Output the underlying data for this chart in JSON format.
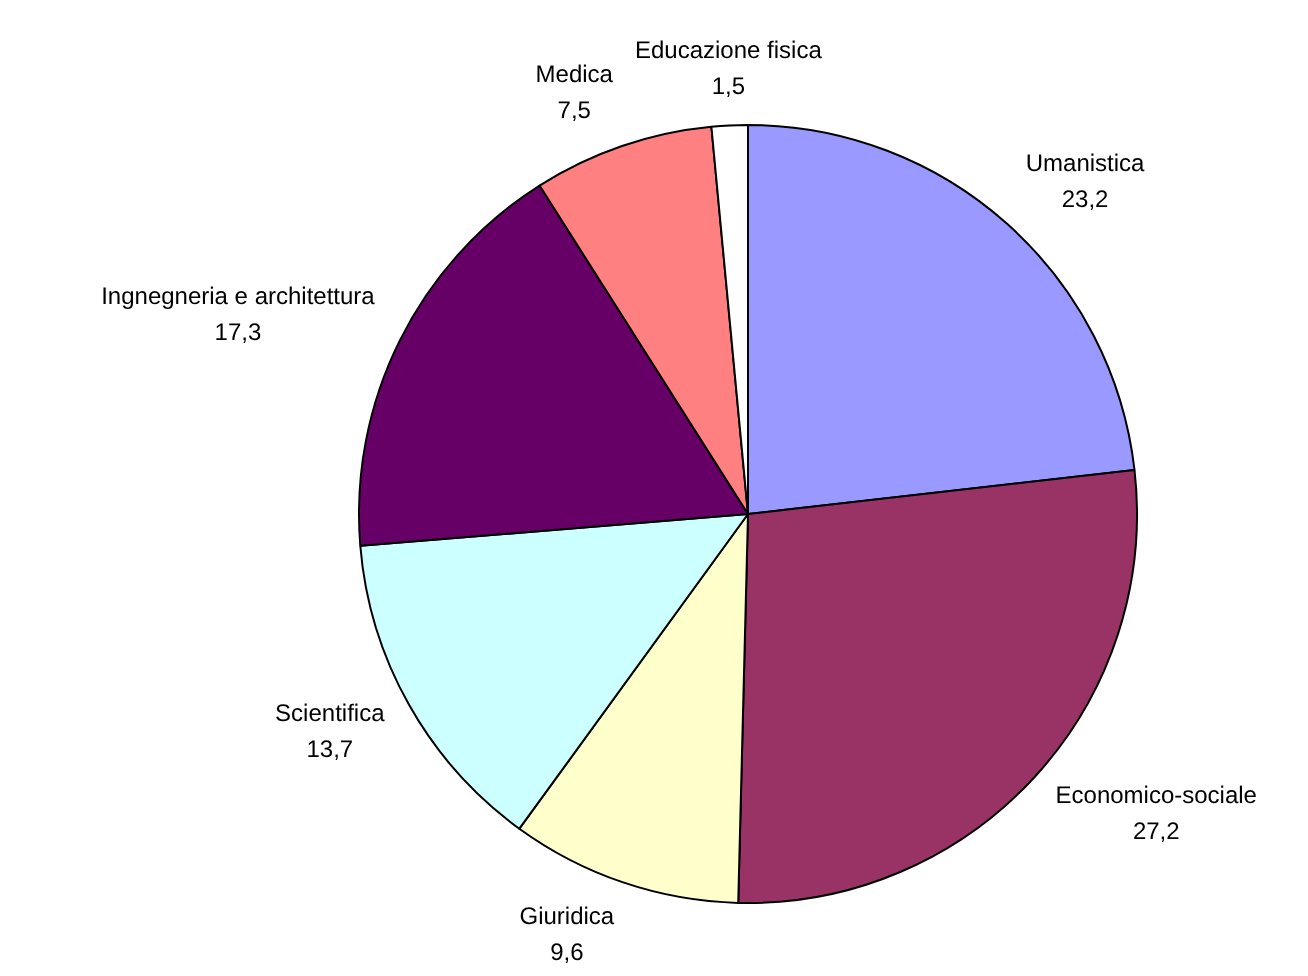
{
  "chart_data": {
    "type": "pie",
    "categories": [
      "Umanistica",
      "Economico-sociale",
      "Giuridica",
      "Scientifica",
      "Ingnegneria e architettura",
      "Medica",
      "Educazione fisica"
    ],
    "values": [
      23.2,
      27.2,
      9.6,
      13.7,
      17.3,
      7.5,
      1.5
    ],
    "value_labels": [
      "23,2",
      "27,2",
      "9,6",
      "13,7",
      "17,3",
      "7,5",
      "1,5"
    ],
    "colors": [
      "#9999ff",
      "#993366",
      "#ffffcc",
      "#ccffff",
      "#660066",
      "#ff8080",
      "#ffffff"
    ],
    "legend": false
  }
}
